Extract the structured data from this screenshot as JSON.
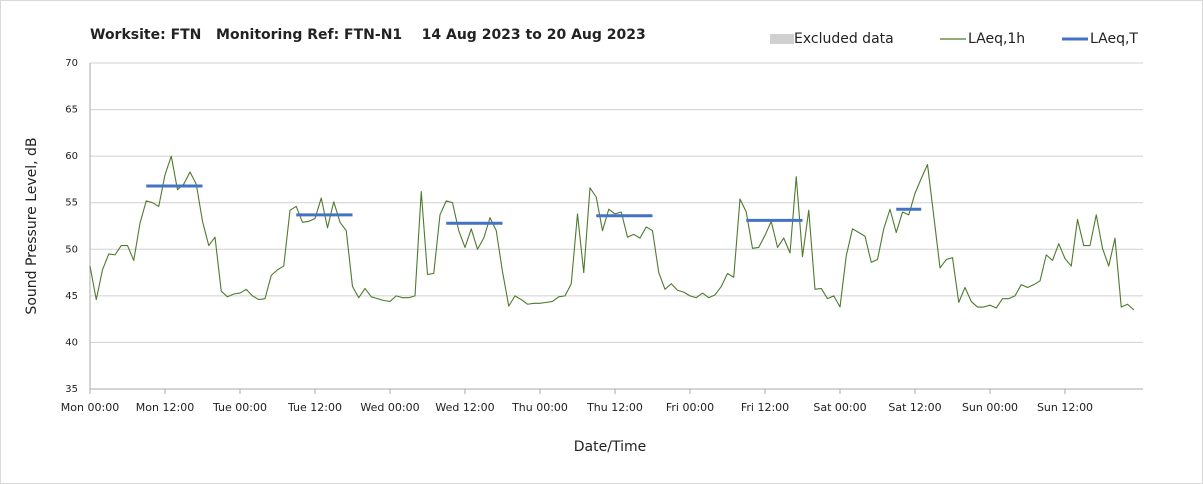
{
  "chart_data": {
    "type": "line",
    "title": "Worksite: FTN   Monitoring Ref: FTN-N1    14 Aug 2023 to 20 Aug 2023",
    "xlabel": "Date/Time",
    "ylabel": "Sound Pressure Level, dB",
    "xlim": [
      0,
      168
    ],
    "ylim": [
      35,
      70
    ],
    "xticks": [
      {
        "value": 0,
        "label": "Mon 00:00"
      },
      {
        "value": 12,
        "label": "Mon 12:00"
      },
      {
        "value": 24,
        "label": "Tue 00:00"
      },
      {
        "value": 36,
        "label": "Tue 12:00"
      },
      {
        "value": 48,
        "label": "Wed 00:00"
      },
      {
        "value": 60,
        "label": "Wed 12:00"
      },
      {
        "value": 72,
        "label": "Thu 00:00"
      },
      {
        "value": 84,
        "label": "Thu 12:00"
      },
      {
        "value": 96,
        "label": "Fri 00:00"
      },
      {
        "value": 108,
        "label": "Fri 12:00"
      },
      {
        "value": 120,
        "label": "Sat 00:00"
      },
      {
        "value": 132,
        "label": "Sat 12:00"
      },
      {
        "value": 144,
        "label": "Sun 00:00"
      },
      {
        "value": 156,
        "label": "Sun 12:00"
      }
    ],
    "yticks": [
      35,
      40,
      45,
      50,
      55,
      60,
      65,
      70
    ],
    "grid": true,
    "series": [
      {
        "name": "Excluded data",
        "color": "#d0d0d0",
        "style": "box",
        "x": [],
        "values": []
      },
      {
        "name": "LAeq,1h",
        "color": "#4e7a2e",
        "style": "line",
        "x": [
          0,
          1,
          2,
          3,
          4,
          5,
          6,
          7,
          8,
          9,
          10,
          11,
          12,
          13,
          14,
          15,
          16,
          17,
          18,
          19,
          20,
          21,
          22,
          23,
          24,
          25,
          26,
          27,
          28,
          29,
          30,
          31,
          32,
          33,
          34,
          35,
          36,
          37,
          38,
          39,
          40,
          41,
          42,
          43,
          44,
          45,
          46,
          47,
          48,
          49,
          50,
          51,
          52,
          53,
          54,
          55,
          56,
          57,
          58,
          59,
          60,
          61,
          62,
          63,
          64,
          65,
          66,
          67,
          68,
          69,
          70,
          71,
          72,
          73,
          74,
          75,
          76,
          77,
          78,
          79,
          80,
          81,
          82,
          83,
          84,
          85,
          86,
          87,
          88,
          89,
          90,
          91,
          92,
          93,
          94,
          95,
          96,
          97,
          98,
          99,
          100,
          101,
          102,
          103,
          104,
          105,
          106,
          107,
          108,
          109,
          110,
          111,
          112,
          113,
          114,
          115,
          116,
          117,
          118,
          119,
          120,
          121,
          122,
          123,
          124,
          125,
          126,
          127,
          128,
          129,
          130,
          131,
          132,
          133,
          134,
          135,
          136,
          137,
          138,
          139,
          140,
          141,
          142,
          143,
          144,
          145,
          146,
          147,
          148,
          149,
          150,
          151,
          152,
          153,
          154,
          155,
          156,
          157,
          158,
          159,
          160,
          161,
          162,
          163,
          164,
          165,
          166,
          167
        ],
        "values": [
          48.2,
          44.6,
          47.8,
          49.5,
          49.4,
          50.4,
          50.4,
          48.8,
          52.8,
          55.2,
          55.0,
          54.6,
          58.0,
          60.0,
          56.4,
          57.0,
          58.3,
          57.0,
          53.0,
          50.4,
          51.3,
          45.5,
          44.9,
          45.2,
          45.3,
          45.7,
          45.0,
          44.6,
          44.7,
          47.2,
          47.8,
          48.2,
          54.2,
          54.6,
          52.9,
          53.0,
          53.3,
          55.5,
          52.3,
          55.1,
          52.9,
          52.0,
          46.0,
          44.8,
          45.8,
          44.9,
          44.7,
          44.5,
          44.4,
          45.0,
          44.8,
          44.8,
          45.0,
          56.2,
          47.3,
          47.4,
          53.7,
          55.2,
          55.0,
          52.0,
          50.2,
          52.2,
          50.0,
          51.2,
          53.4,
          52.0,
          47.6,
          43.9,
          45.0,
          44.6,
          44.1,
          44.2,
          44.2,
          44.3,
          44.4,
          44.9,
          45.0,
          46.3,
          53.8,
          47.5,
          56.6,
          55.6,
          52.0,
          54.3,
          53.8,
          54.0,
          51.3,
          51.6,
          51.2,
          52.4,
          52.0,
          47.5,
          45.7,
          46.3,
          45.6,
          45.4,
          45.0,
          44.8,
          45.3,
          44.8,
          45.1,
          46.0,
          47.4,
          47.0,
          55.4,
          54.0,
          50.1,
          50.2,
          51.5,
          53.0,
          50.2,
          51.2,
          49.6,
          57.8,
          49.2,
          54.2,
          45.7,
          45.8,
          44.7,
          45.0,
          43.8,
          49.3,
          52.2,
          51.8,
          51.4,
          48.6,
          48.9,
          52.2,
          54.3,
          51.8,
          54.0,
          53.7,
          56.0,
          57.6,
          59.1,
          53.6,
          48.0,
          48.9,
          49.1,
          44.3,
          45.9,
          44.4,
          43.8,
          43.8,
          44.0,
          43.7,
          44.7,
          44.7,
          45.0,
          46.2,
          45.9,
          46.2,
          46.6,
          49.4,
          48.8,
          50.6,
          49.0,
          48.2,
          53.2,
          50.4,
          50.4,
          53.7,
          50.1,
          48.2,
          51.2,
          43.8,
          44.1,
          43.5
        ]
      },
      {
        "name": "LAeq,T",
        "color": "#4472c4",
        "style": "thick",
        "x": [
          9,
          18,
          null,
          33,
          42,
          null,
          57,
          66,
          null,
          81,
          90,
          null,
          105,
          114,
          null,
          129,
          133
        ],
        "values": [
          56.8,
          56.8,
          null,
          53.7,
          53.7,
          null,
          52.8,
          52.8,
          null,
          53.6,
          53.6,
          null,
          53.1,
          53.1,
          null,
          54.3,
          54.3
        ]
      }
    ]
  }
}
